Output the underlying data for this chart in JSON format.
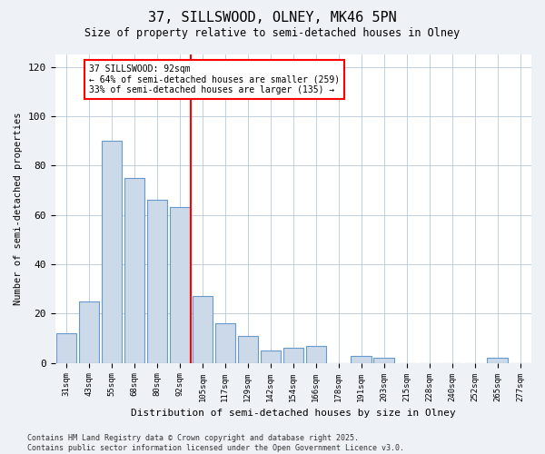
{
  "title": "37, SILLSWOOD, OLNEY, MK46 5PN",
  "subtitle": "Size of property relative to semi-detached houses in Olney",
  "xlabel": "Distribution of semi-detached houses by size in Olney",
  "ylabel": "Number of semi-detached properties",
  "categories": [
    "31sqm",
    "43sqm",
    "55sqm",
    "68sqm",
    "80sqm",
    "92sqm",
    "105sqm",
    "117sqm",
    "129sqm",
    "142sqm",
    "154sqm",
    "166sqm",
    "178sqm",
    "191sqm",
    "203sqm",
    "215sqm",
    "228sqm",
    "240sqm",
    "252sqm",
    "265sqm",
    "277sqm"
  ],
  "values": [
    12,
    25,
    90,
    75,
    66,
    63,
    27,
    16,
    11,
    5,
    6,
    7,
    0,
    3,
    2,
    0,
    0,
    0,
    0,
    2,
    0
  ],
  "bar_color": "#ccd9e8",
  "bar_edge_color": "#6699cc",
  "vline_x": 5.5,
  "annotation_line1": "37 SILLSWOOD: 92sqm",
  "annotation_line2": "← 64% of semi-detached houses are smaller (259)",
  "annotation_line3": "33% of semi-detached houses are larger (135) →",
  "ylim": [
    0,
    125
  ],
  "yticks": [
    0,
    20,
    40,
    60,
    80,
    100,
    120
  ],
  "footer_line1": "Contains HM Land Registry data © Crown copyright and database right 2025.",
  "footer_line2": "Contains public sector information licensed under the Open Government Licence v3.0.",
  "background_color": "#eef2f7",
  "plot_background": "#ffffff"
}
